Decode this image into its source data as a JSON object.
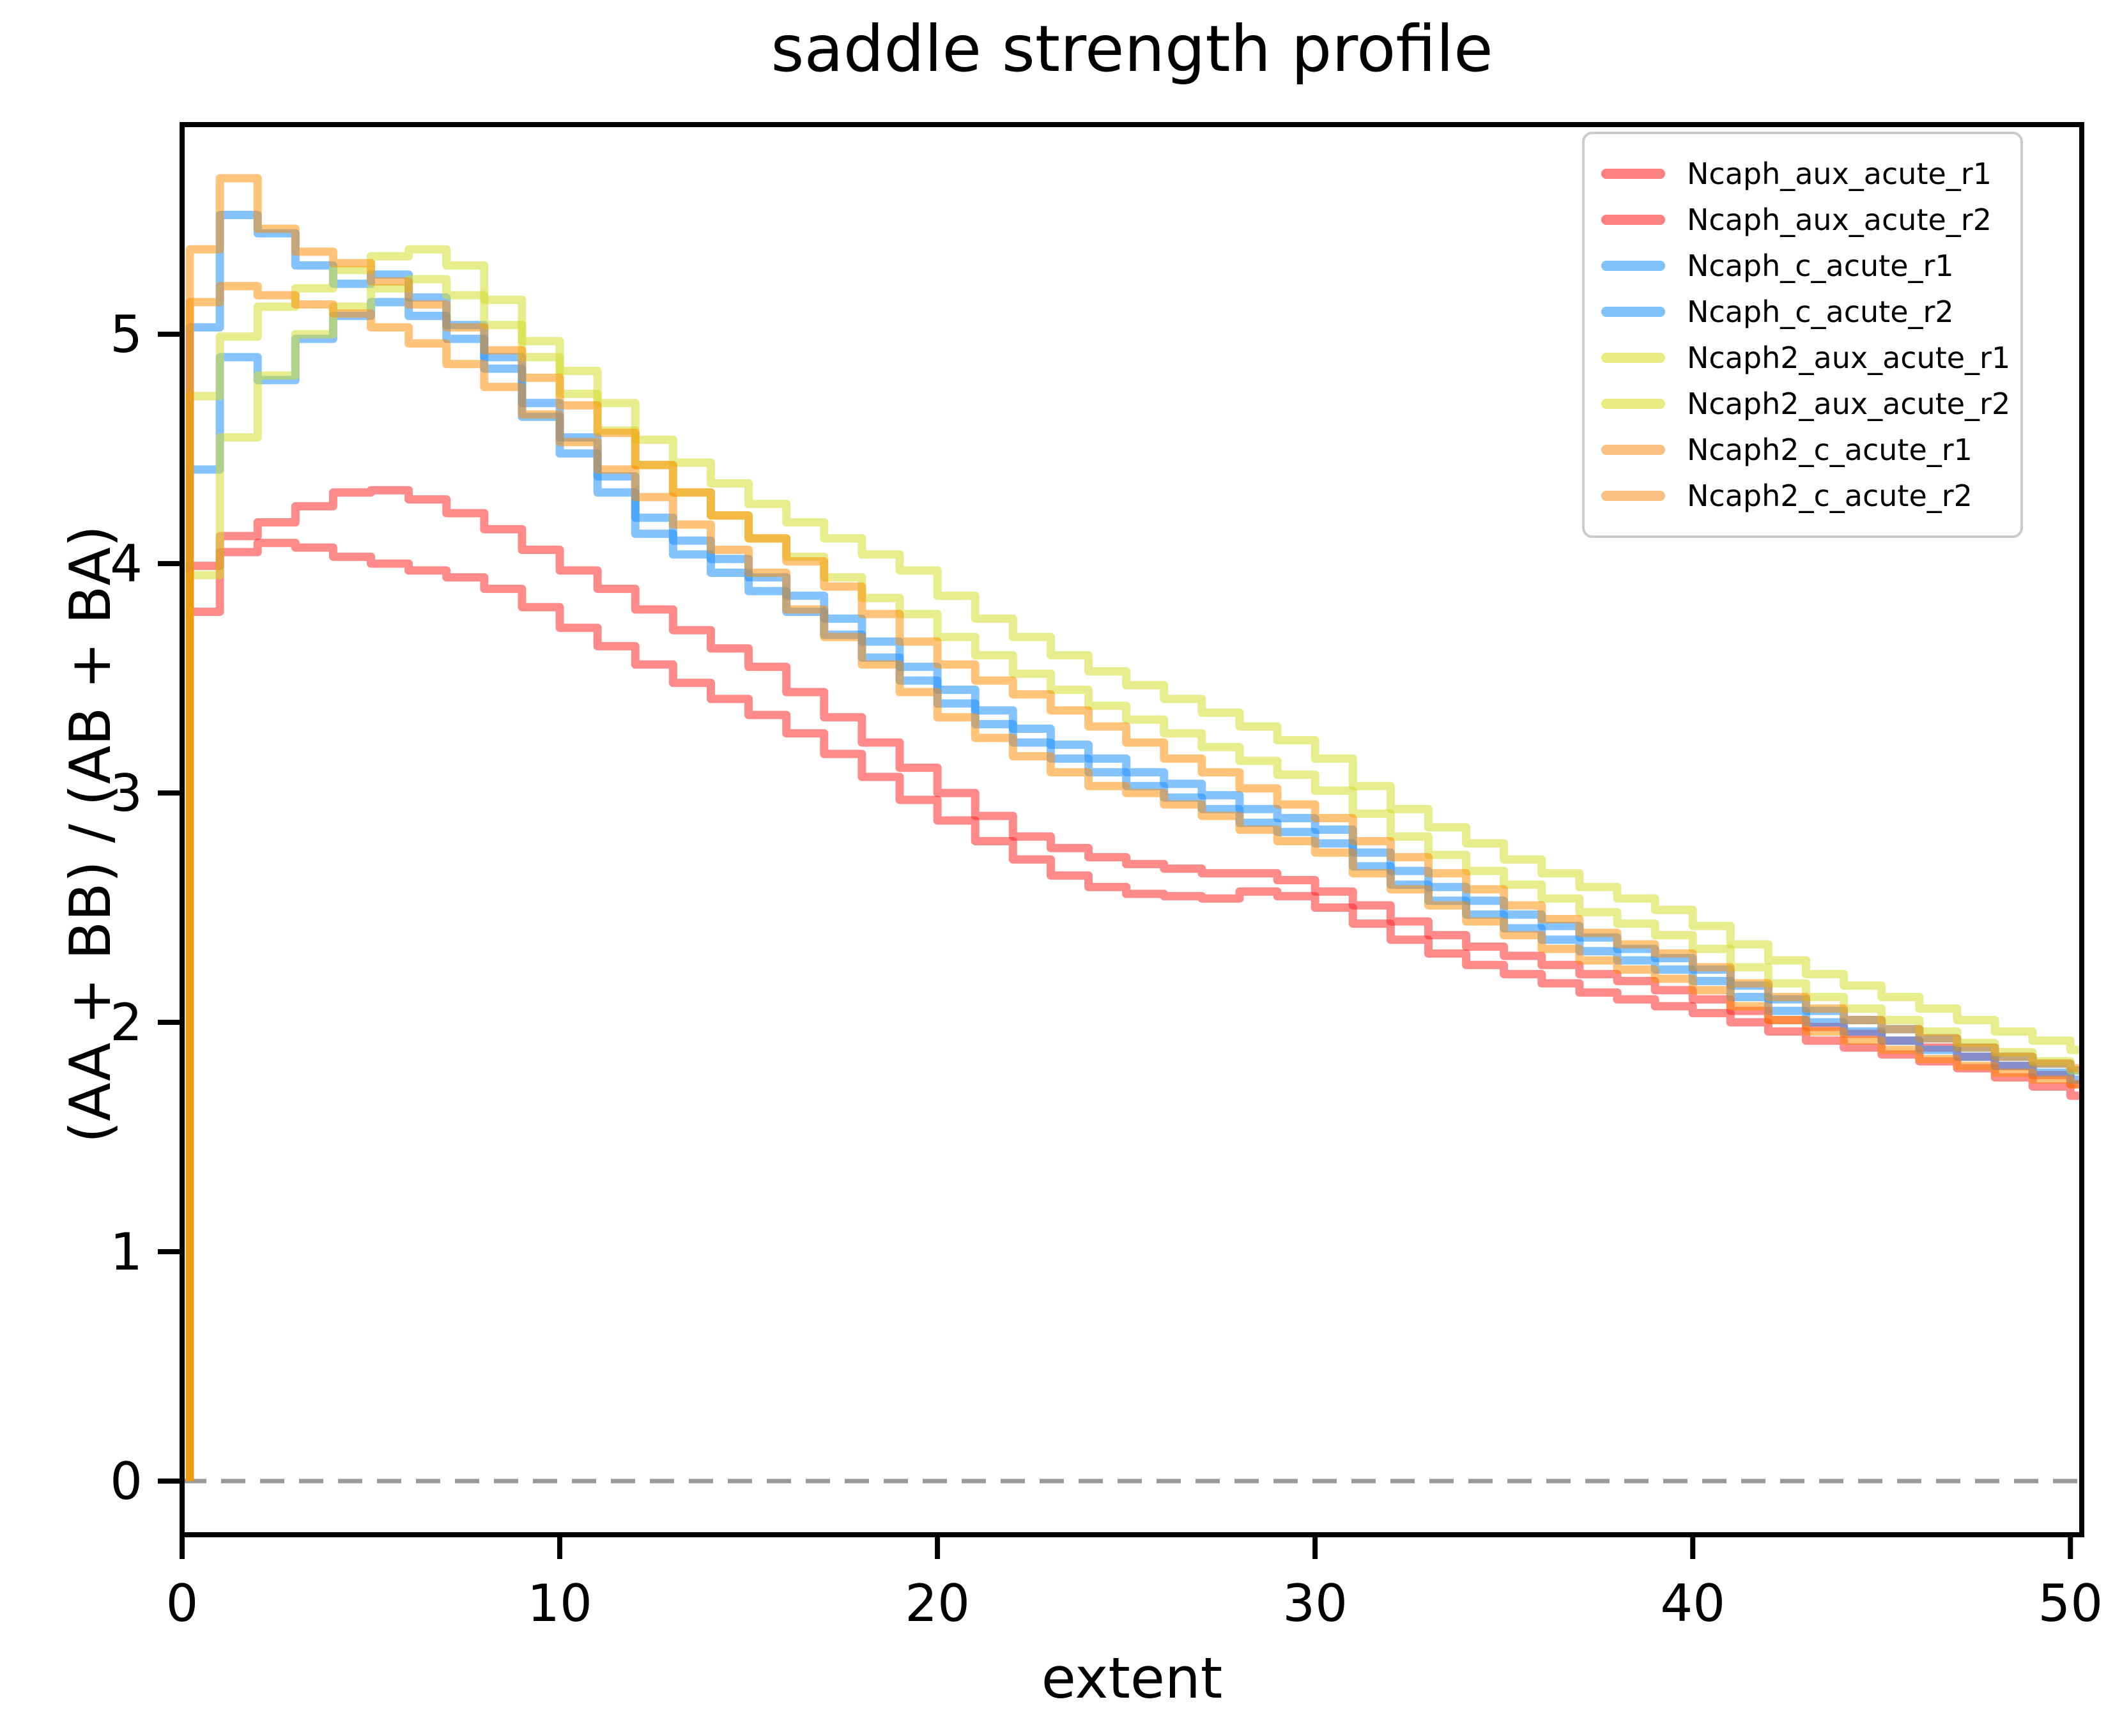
{
  "figure": {
    "title": "saddle strength profile"
  },
  "chart_data": {
    "type": "line",
    "subtype": "step-histogram-profile",
    "step_mode": "post",
    "title": "saddle strength profile",
    "xlabel": "extent",
    "ylabel": "(AA + BB) / (AB + BA)",
    "xlim": [
      0,
      50.3
    ],
    "ylim": [
      -0.234,
      5.914
    ],
    "x_ticks": [
      "0",
      "10",
      "20",
      "30",
      "40",
      "50"
    ],
    "x_tick_values": [
      0,
      10,
      20,
      30,
      40,
      50
    ],
    "y_ticks": [
      "0",
      "1",
      "2",
      "3",
      "4",
      "5"
    ],
    "y_tick_values": [
      0,
      1,
      2,
      3,
      4,
      5
    ],
    "grid": false,
    "legend_position": "upper right",
    "zero_line": {
      "y": 0,
      "style": "dashed",
      "color": "#9a9a9a"
    },
    "x_start": 0,
    "x_step": 1,
    "series": [
      {
        "name": "Ncaph_aux_acute_r1",
        "color": "#ff1f1f",
        "opacity": 0.52,
        "swatch": "#fd8080",
        "values": [
          3.99,
          4.12,
          4.18,
          4.25,
          4.31,
          4.32,
          4.28,
          4.22,
          4.15,
          4.06,
          3.97,
          3.89,
          3.8,
          3.71,
          3.63,
          3.55,
          3.44,
          3.33,
          3.22,
          3.11,
          3.0,
          2.9,
          2.81,
          2.76,
          2.72,
          2.69,
          2.67,
          2.65,
          2.65,
          2.62,
          2.57,
          2.51,
          2.44,
          2.38,
          2.33,
          2.29,
          2.25,
          2.21,
          2.18,
          2.14,
          2.1,
          2.05,
          2.01,
          1.98,
          1.95,
          1.92,
          1.89,
          1.85,
          1.81,
          1.77,
          1.73,
          1.71
        ]
      },
      {
        "name": "Ncaph_aux_acute_r2",
        "color": "#ff1f1f",
        "opacity": 0.52,
        "swatch": "#fd8080",
        "values": [
          3.79,
          4.05,
          4.09,
          4.07,
          4.03,
          4.0,
          3.97,
          3.94,
          3.89,
          3.81,
          3.72,
          3.64,
          3.56,
          3.48,
          3.41,
          3.34,
          3.26,
          3.17,
          3.07,
          2.97,
          2.88,
          2.79,
          2.71,
          2.64,
          2.59,
          2.56,
          2.55,
          2.54,
          2.57,
          2.55,
          2.5,
          2.43,
          2.36,
          2.3,
          2.25,
          2.21,
          2.17,
          2.13,
          2.1,
          2.07,
          2.04,
          2.0,
          1.96,
          1.92,
          1.89,
          1.86,
          1.83,
          1.8,
          1.76,
          1.72,
          1.68,
          1.66
        ]
      },
      {
        "name": "Ncaph_c_acute_r1",
        "color": "#1e90ff",
        "opacity": 0.54,
        "swatch": "#7fc1fb",
        "values": [
          5.03,
          5.52,
          5.44,
          5.3,
          5.22,
          5.26,
          5.16,
          5.04,
          4.9,
          4.7,
          4.55,
          4.38,
          4.2,
          4.1,
          4.02,
          3.94,
          3.86,
          3.76,
          3.66,
          3.55,
          3.45,
          3.36,
          3.28,
          3.21,
          3.15,
          3.09,
          3.04,
          2.99,
          2.93,
          2.89,
          2.84,
          2.74,
          2.66,
          2.59,
          2.53,
          2.47,
          2.42,
          2.37,
          2.32,
          2.28,
          2.23,
          2.16,
          2.1,
          2.05,
          2.01,
          1.97,
          1.93,
          1.89,
          1.85,
          1.82,
          1.79,
          1.77
        ]
      },
      {
        "name": "Ncaph_c_acute_r2",
        "color": "#1e90ff",
        "opacity": 0.54,
        "swatch": "#7fc1fb",
        "values": [
          4.41,
          4.9,
          4.8,
          4.98,
          5.08,
          5.14,
          5.08,
          4.98,
          4.85,
          4.64,
          4.48,
          4.31,
          4.13,
          4.04,
          3.96,
          3.88,
          3.79,
          3.69,
          3.59,
          3.49,
          3.39,
          3.3,
          3.22,
          3.15,
          3.09,
          3.03,
          2.98,
          2.93,
          2.87,
          2.83,
          2.78,
          2.68,
          2.6,
          2.53,
          2.47,
          2.41,
          2.36,
          2.31,
          2.27,
          2.23,
          2.18,
          2.11,
          2.05,
          2.0,
          1.96,
          1.92,
          1.88,
          1.85,
          1.81,
          1.78,
          1.75,
          1.73
        ]
      },
      {
        "name": "Ncaph2_aux_acute_r1",
        "color": "#d4dd2e",
        "opacity": 0.55,
        "swatch": "#e9ec83",
        "values": [
          4.73,
          4.99,
          5.12,
          5.2,
          5.28,
          5.34,
          5.37,
          5.3,
          5.15,
          4.97,
          4.84,
          4.7,
          4.54,
          4.44,
          4.35,
          4.26,
          4.18,
          4.11,
          4.04,
          3.97,
          3.86,
          3.76,
          3.68,
          3.6,
          3.53,
          3.47,
          3.41,
          3.35,
          3.29,
          3.23,
          3.15,
          3.03,
          2.93,
          2.85,
          2.78,
          2.71,
          2.65,
          2.59,
          2.54,
          2.49,
          2.42,
          2.34,
          2.27,
          2.21,
          2.16,
          2.11,
          2.06,
          2.01,
          1.96,
          1.92,
          1.88,
          1.86
        ]
      },
      {
        "name": "Ncaph2_aux_acute_r2",
        "color": "#d4dd2e",
        "opacity": 0.55,
        "swatch": "#e9ec83",
        "values": [
          3.95,
          4.55,
          4.82,
          5.0,
          5.12,
          5.2,
          5.24,
          5.17,
          5.04,
          4.9,
          4.74,
          4.58,
          4.43,
          4.31,
          4.21,
          4.11,
          4.03,
          3.94,
          3.85,
          3.78,
          3.68,
          3.6,
          3.52,
          3.45,
          3.38,
          3.32,
          3.26,
          3.2,
          3.14,
          3.08,
          3.01,
          2.91,
          2.81,
          2.73,
          2.66,
          2.6,
          2.54,
          2.48,
          2.43,
          2.38,
          2.32,
          2.24,
          2.17,
          2.11,
          2.06,
          2.01,
          1.96,
          1.91,
          1.87,
          1.83,
          1.79,
          1.77
        ]
      },
      {
        "name": "Ncaph2_c_acute_r1",
        "color": "#ff8c00",
        "opacity": 0.52,
        "swatch": "#fdc083",
        "values": [
          5.37,
          5.68,
          5.46,
          5.36,
          5.31,
          5.23,
          5.13,
          5.03,
          4.93,
          4.81,
          4.69,
          4.57,
          4.43,
          4.31,
          4.21,
          4.11,
          4.01,
          3.9,
          3.78,
          3.66,
          3.56,
          3.49,
          3.43,
          3.36,
          3.29,
          3.22,
          3.15,
          3.09,
          3.02,
          2.95,
          2.89,
          2.79,
          2.72,
          2.65,
          2.58,
          2.51,
          2.45,
          2.39,
          2.34,
          2.3,
          2.24,
          2.17,
          2.11,
          2.06,
          2.01,
          1.97,
          1.93,
          1.89,
          1.85,
          1.82,
          1.8,
          1.78
        ]
      },
      {
        "name": "Ncaph2_c_acute_r2",
        "color": "#ff8c00",
        "opacity": 0.52,
        "swatch": "#fdc083",
        "values": [
          5.14,
          5.21,
          5.17,
          5.13,
          5.09,
          5.03,
          4.96,
          4.87,
          4.77,
          4.65,
          4.53,
          4.41,
          4.29,
          4.17,
          4.06,
          3.96,
          3.8,
          3.68,
          3.56,
          3.44,
          3.33,
          3.24,
          3.16,
          3.09,
          3.03,
          3.0,
          2.95,
          2.9,
          2.84,
          2.79,
          2.74,
          2.65,
          2.58,
          2.51,
          2.44,
          2.38,
          2.32,
          2.27,
          2.23,
          2.19,
          2.14,
          2.07,
          2.01,
          1.96,
          1.92,
          1.88,
          1.84,
          1.81,
          1.78,
          1.75,
          1.73,
          1.7
        ]
      }
    ]
  },
  "legend": {
    "items": [
      {
        "label": "Ncaph_aux_acute_r1",
        "swatch": "#fd8080"
      },
      {
        "label": "Ncaph_aux_acute_r2",
        "swatch": "#fd8080"
      },
      {
        "label": "Ncaph_c_acute_r1",
        "swatch": "#7fc1fb"
      },
      {
        "label": "Ncaph_c_acute_r2",
        "swatch": "#7fc1fb"
      },
      {
        "label": "Ncaph2_aux_acute_r1",
        "swatch": "#e9ec83"
      },
      {
        "label": "Ncaph2_aux_acute_r2",
        "swatch": "#e9ec83"
      },
      {
        "label": "Ncaph2_c_acute_r1",
        "swatch": "#fdc083"
      },
      {
        "label": "Ncaph2_c_acute_r2",
        "swatch": "#fdc083"
      }
    ]
  }
}
